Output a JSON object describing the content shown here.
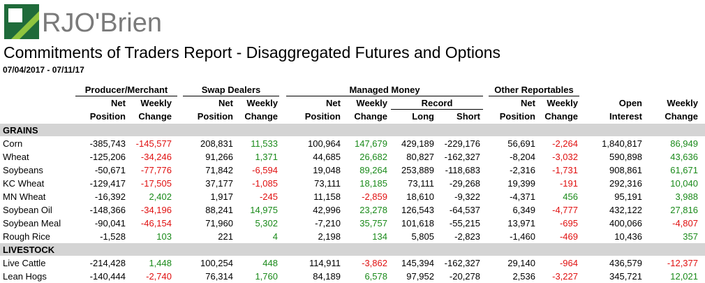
{
  "brand": {
    "name": "RJO'Brien",
    "colors": {
      "dark_green": "#1f6b3a",
      "light_green": "#8fc43f",
      "gray": "#7a7a7a"
    }
  },
  "report": {
    "title": "Commitments of Traders Report - Disaggregated Futures and Options",
    "date_range": "07/04/2017 - 07/11/17"
  },
  "groups": {
    "producer": "Producer/Merchant",
    "swap": "Swap Dealers",
    "managed": "Managed Money",
    "record": "Record",
    "other": "Other Reportables"
  },
  "col_headers": {
    "net": "Net",
    "position": "Position",
    "weekly": "Weekly",
    "change": "Change",
    "long": "Long",
    "short": "Short",
    "open": "Open",
    "interest": "Interest"
  },
  "sections": [
    {
      "name": "GRAINS",
      "rows": [
        {
          "name": "Corn",
          "values": [
            "-385,743",
            "-145,577",
            "208,831",
            "11,533",
            "100,964",
            "147,679",
            "429,189",
            "-229,176",
            "56,691",
            "-2,264",
            "1,840,817",
            "86,949"
          ]
        },
        {
          "name": "Wheat",
          "values": [
            "-125,206",
            "-34,246",
            "91,266",
            "1,371",
            "44,685",
            "26,682",
            "80,827",
            "-162,327",
            "-8,204",
            "-3,032",
            "590,898",
            "43,636"
          ]
        },
        {
          "name": "Soybeans",
          "values": [
            "-50,671",
            "-77,776",
            "71,842",
            "-6,594",
            "19,048",
            "89,264",
            "253,889",
            "-118,683",
            "-2,316",
            "-1,731",
            "908,861",
            "61,671"
          ]
        },
        {
          "name": "KC Wheat",
          "values": [
            "-129,417",
            "-17,505",
            "37,177",
            "-1,085",
            "73,111",
            "18,185",
            "73,111",
            "-29,268",
            "19,399",
            "-191",
            "292,316",
            "10,040"
          ]
        },
        {
          "name": "MN Wheat",
          "values": [
            "-16,392",
            "2,402",
            "1,917",
            "-245",
            "11,158",
            "-2,859",
            "18,610",
            "-9,322",
            "-4,371",
            "456",
            "95,191",
            "3,988"
          ]
        },
        {
          "name": "Soybean Oil",
          "values": [
            "-148,366",
            "-34,196",
            "88,241",
            "14,975",
            "42,996",
            "23,278",
            "126,543",
            "-64,537",
            "6,349",
            "-4,777",
            "432,122",
            "27,816"
          ]
        },
        {
          "name": "Soybean Meal",
          "values": [
            "-90,041",
            "-46,154",
            "71,960",
            "5,302",
            "-7,210",
            "35,757",
            "101,618",
            "-55,215",
            "13,971",
            "-695",
            "400,066",
            "-4,807"
          ]
        },
        {
          "name": "Rough Rice",
          "values": [
            "-1,528",
            "103",
            "221",
            "4",
            "2,198",
            "134",
            "5,805",
            "-2,823",
            "-1,460",
            "-469",
            "10,436",
            "357"
          ]
        }
      ]
    },
    {
      "name": "LIVESTOCK",
      "rows": [
        {
          "name": "Live Cattle",
          "values": [
            "-214,428",
            "1,448",
            "100,254",
            "448",
            "114,911",
            "-3,862",
            "145,394",
            "-162,327",
            "29,140",
            "-964",
            "436,579",
            "-12,377"
          ]
        },
        {
          "name": "Lean Hogs",
          "values": [
            "-140,444",
            "-2,740",
            "76,314",
            "1,760",
            "84,189",
            "6,578",
            "97,952",
            "-20,278",
            "2,536",
            "-3,227",
            "345,721",
            "12,021"
          ]
        }
      ]
    }
  ]
}
